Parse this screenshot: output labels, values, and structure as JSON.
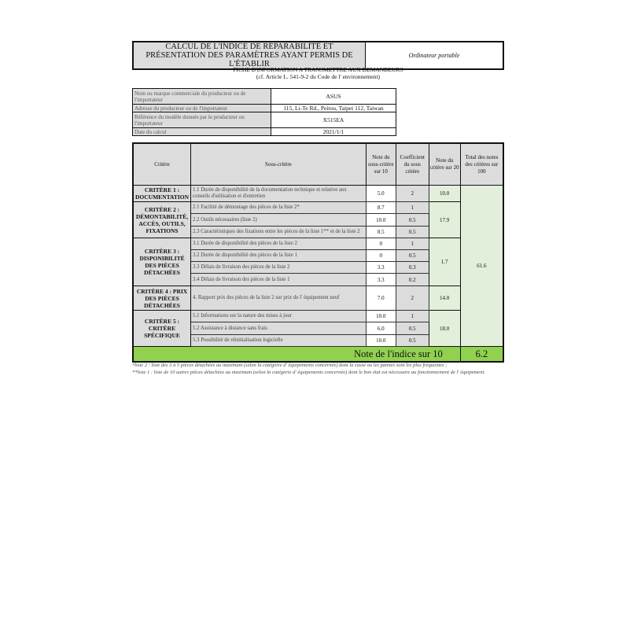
{
  "header": {
    "title_line1": "CALCUL DE L'INDICE DE RÉPARABILITÉ ET",
    "title_line2": "PRÉSENTATION DES PARAMÈTRES AYANT PERMIS DE L'ÉTABLIR",
    "product_type": "Ordinateur portable"
  },
  "fiche": {
    "line1": "FICHE D'INFORMATION A TRANSMETTRE AUX DEMANDEURS",
    "line2": "(cf. Article L. 541-9-2 du Code de l' environnement)"
  },
  "info": [
    {
      "label": "Nom ou marque commerciale du producteur ou de l'importateur",
      "value": "ASUS"
    },
    {
      "label": "Adresse du producteur ou de l'importateur",
      "value": "115, Li-Te Rd., Peitou, Taipei 112, Taiwan"
    },
    {
      "label": "Référence du modèle donnée par le producteur ou l'importateur",
      "value": "X515EA"
    },
    {
      "label": "Date du calcul",
      "value": "2021/1/1"
    }
  ],
  "table": {
    "headers": [
      "Critère",
      "Sous-critère",
      "Note du sous-critère sur 10",
      "Coefficient du sous critère",
      "Note du critère sur 20",
      "Total des notes des critères sur 100"
    ],
    "criteria": [
      "CRITÈRE 1 : DOCUMENTATION",
      "CRITÈRE 2 : DÉMONTABILITÉ, ACCÈS, OUTILS, FIXATIONS",
      "CRITÈRE 3 : DISPONIBILITÉ DES PIÈCES DÉTACHÉES",
      "CRITÈRE 4 : PRIX DES PIÈCES DÉTACHÉES",
      "CRITÈRE 5 : CRITÈRE SPÉCIFIQUE"
    ],
    "criteria_scores": [
      "10.0",
      "17.9",
      "1.7",
      "14.0",
      "18.0"
    ],
    "total": "61.6",
    "rows": [
      {
        "sub": "1.1 Durée de disponibilité de la documentation technique et relative aux conseils d'utilisation et d'entretien",
        "note": "5.0",
        "coef": "2"
      },
      {
        "sub": "2.1 Facilité de démontage des pièces de la liste 2*",
        "note": "8.7",
        "coef": "1"
      },
      {
        "sub": "2.2 Outils nécessaires (liste 2)",
        "note": "10.0",
        "coef": "0.5"
      },
      {
        "sub": "2.3 Caractéristiques des fixations entre les pièces de la liste 1** et de la liste 2",
        "note": "8.5",
        "coef": "0.5"
      },
      {
        "sub": "3.1 Durée de disponibilité des pièces de la liste 2",
        "note": "0",
        "coef": "1"
      },
      {
        "sub": "3.2 Durée de disponibilité des pièces de la liste 1",
        "note": "0",
        "coef": "0.5"
      },
      {
        "sub": "3.3 Délais de livraison des pièces de la liste 2",
        "note": "3.3",
        "coef": "0.3"
      },
      {
        "sub": "3.4 Délais de livraison des pièces de la liste 1",
        "note": "3.3",
        "coef": "0.2"
      },
      {
        "sub": "4. Rapport prix des pièces de la liste 2 sur prix de l' équipement neuf",
        "note": "7.0",
        "coef": "2"
      },
      {
        "sub": "5.1 Informations sur la nature des mises à jour",
        "note": "10.0",
        "coef": "1"
      },
      {
        "sub": "5.2 Assistance à distance sans frais",
        "note": "6.0",
        "coef": "0.5"
      },
      {
        "sub": "5.3 Possibilité de réinitialisation logicielle",
        "note": "10.0",
        "coef": "0.5"
      }
    ],
    "index_label": "Note de l'indice sur 10",
    "index_value": "6.2"
  },
  "notes": [
    "*liste 2 : liste des 3 à 5 pièces détachées au maximum (selon la catégorie d' équipements concernée) dont la casse ou les pannes sont les plus fréquentes ;",
    "**liste 1 : liste de 10 autres pièces détachées au maximum (selon la catégorie d' équipements concernée) dont le bon état est nécessaire au fonctionnement de l' équipement."
  ],
  "colors": {
    "gray": "#dcdcdc",
    "light_green": "#e2efda",
    "green": "#92d050"
  }
}
